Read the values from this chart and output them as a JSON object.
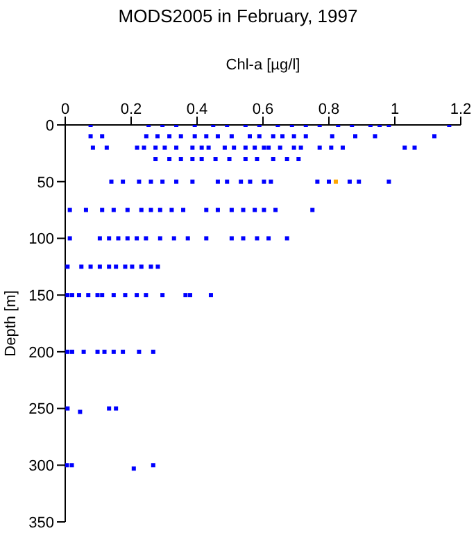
{
  "chart_data": {
    "type": "scatter",
    "title": "MODS2005 in February, 1997",
    "xlabel": "Chl-a [µg/l]",
    "ylabel": "Depth [m]",
    "xlim": [
      0,
      1.2
    ],
    "xticks": [
      0,
      0.2,
      0.4,
      0.6,
      0.8,
      1,
      1.2
    ],
    "ylim": [
      350,
      0
    ],
    "yticks": [
      0,
      50,
      100,
      150,
      200,
      250,
      300,
      350
    ],
    "grid": false,
    "marker": "square",
    "series": [
      {
        "color": "#0000ff",
        "x": [
          0.077,
          0.253,
          0.295,
          0.337,
          0.393,
          0.449,
          0.491,
          0.547,
          0.589,
          0.645,
          0.688,
          0.73,
          0.772,
          0.828,
          0.87,
          0.926,
          0.954,
          0.982,
          1.165,
          0.077,
          0.112,
          0.246,
          0.28,
          0.316,
          0.351,
          0.393,
          0.428,
          0.463,
          0.505,
          0.56,
          0.589,
          0.631,
          0.659,
          0.694,
          0.73,
          0.81,
          0.88,
          0.94,
          1.12,
          0.084,
          0.126,
          0.218,
          0.239,
          0.274,
          0.302,
          0.337,
          0.386,
          0.414,
          0.435,
          0.484,
          0.512,
          0.547,
          0.575,
          0.603,
          0.617,
          0.652,
          0.694,
          0.715,
          0.772,
          0.807,
          0.842,
          1.03,
          1.06,
          0.274,
          0.316,
          0.351,
          0.386,
          0.414,
          0.456,
          0.498,
          0.547,
          0.582,
          0.631,
          0.673,
          0.708,
          0.14,
          0.175,
          0.224,
          0.26,
          0.295,
          0.337,
          0.386,
          0.463,
          0.491,
          0.533,
          0.561,
          0.603,
          0.624,
          0.765,
          0.8,
          0.863,
          0.891,
          0.982,
          0.014,
          0.063,
          0.112,
          0.147,
          0.189,
          0.231,
          0.26,
          0.288,
          0.323,
          0.358,
          0.428,
          0.463,
          0.505,
          0.54,
          0.575,
          0.603,
          0.638,
          0.75,
          0.014,
          0.105,
          0.133,
          0.161,
          0.189,
          0.217,
          0.245,
          0.288,
          0.33,
          0.372,
          0.428,
          0.505,
          0.54,
          0.582,
          0.617,
          0.673,
          0.007,
          0.049,
          0.077,
          0.105,
          0.133,
          0.154,
          0.182,
          0.203,
          0.231,
          0.26,
          0.281,
          0.007,
          0.021,
          0.042,
          0.07,
          0.098,
          0.112,
          0.147,
          0.182,
          0.217,
          0.245,
          0.295,
          0.365,
          0.379,
          0.442,
          0.007,
          0.021,
          0.056,
          0.098,
          0.119,
          0.147,
          0.175,
          0.224,
          0.267,
          0.007,
          0.045,
          0.133,
          0.154,
          0.005,
          0.02,
          0.208,
          0.267
        ],
        "values": [
          0,
          0,
          0,
          0,
          0,
          0,
          0,
          0,
          0,
          0,
          0,
          0,
          0,
          0,
          0,
          0,
          0,
          0,
          0,
          10,
          10,
          10,
          10,
          10,
          10,
          10,
          10,
          10,
          10,
          10,
          10,
          10,
          10,
          10,
          10,
          10,
          10,
          10,
          10,
          20,
          20,
          20,
          20,
          20,
          20,
          20,
          20,
          20,
          20,
          20,
          20,
          20,
          20,
          20,
          20,
          20,
          20,
          20,
          20,
          20,
          20,
          20,
          20,
          30,
          30,
          30,
          30,
          30,
          30,
          30,
          30,
          30,
          30,
          30,
          30,
          50,
          50,
          50,
          50,
          50,
          50,
          50,
          50,
          50,
          50,
          50,
          50,
          50,
          50,
          50,
          50,
          50,
          50,
          75,
          75,
          75,
          75,
          75,
          75,
          75,
          75,
          75,
          75,
          75,
          75,
          75,
          75,
          75,
          75,
          75,
          75,
          100,
          100,
          100,
          100,
          100,
          100,
          100,
          100,
          100,
          100,
          100,
          100,
          100,
          100,
          100,
          100,
          125,
          125,
          125,
          125,
          125,
          125,
          125,
          125,
          125,
          125,
          125,
          150,
          150,
          150,
          150,
          150,
          150,
          150,
          150,
          150,
          150,
          150,
          150,
          150,
          150,
          200,
          200,
          200,
          200,
          200,
          200,
          200,
          200,
          200,
          250,
          253,
          250,
          250,
          300,
          300,
          303,
          300
        ]
      },
      {
        "color": "#ffa500",
        "x": [
          0.821
        ],
        "values": [
          50
        ]
      }
    ]
  }
}
